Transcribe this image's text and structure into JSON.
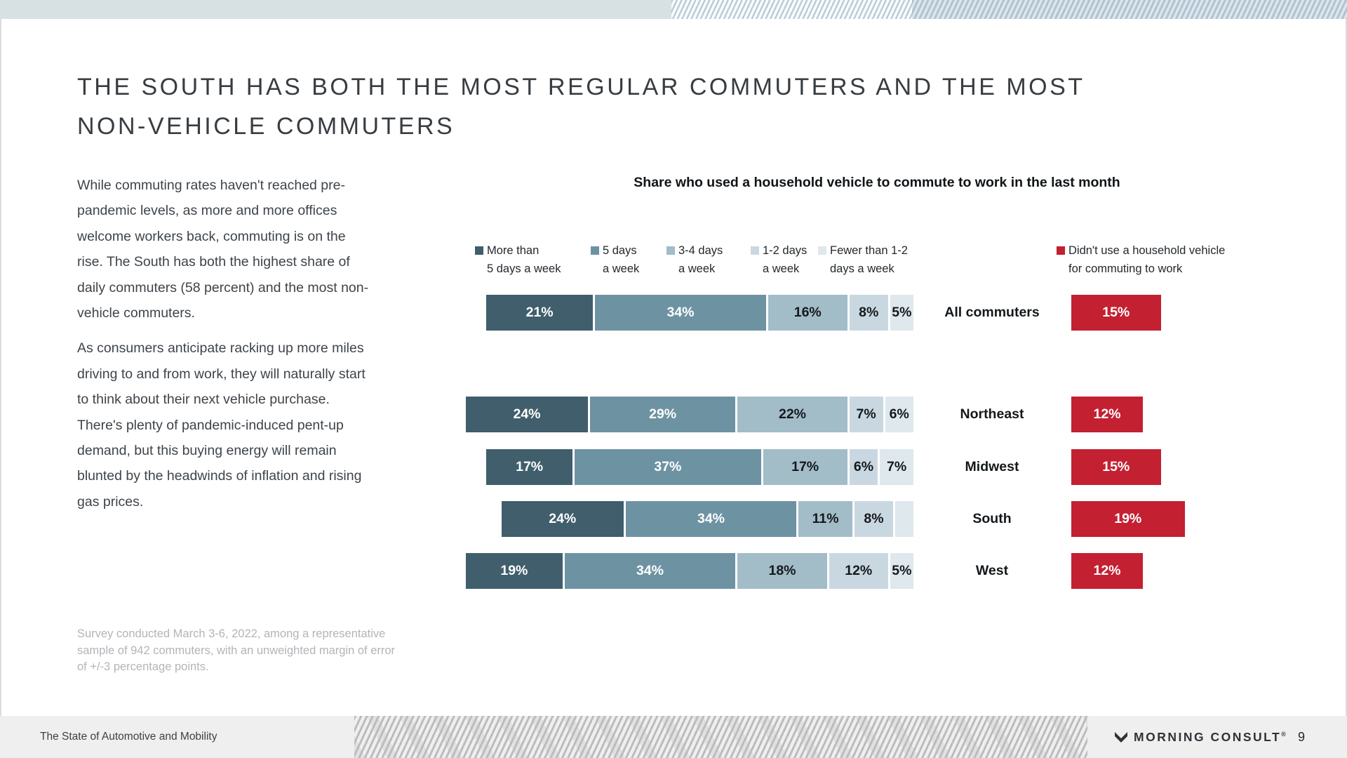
{
  "slide": {
    "title_line1": "THE SOUTH HAS BOTH THE MOST REGULAR COMMUTERS AND THE MOST",
    "title_line2": "NON-VEHICLE COMMUTERS",
    "body_para1": "While commuting rates haven't reached pre-pandemic levels, as more and more offices welcome workers back, commuting is on the rise. The South has both the highest share of daily commuters (58 percent) and the most non-vehicle commuters.",
    "body_para2": "As consumers anticipate racking up more miles driving to and from work, they will naturally start to think about their next vehicle purchase. There's plenty of pandemic-induced pent-up demand, but this buying energy will remain blunted by the headwinds of inflation and rising gas prices.",
    "survey_note": "Survey conducted March 3-6, 2022, among a representative sample of 942 commuters, with an unweighted margin of error of +/-3 percentage points."
  },
  "chart": {
    "title": "Share who used a household vehicle to commute to work in the last month",
    "legend": [
      {
        "line1": "More than",
        "line2": "5 days a week",
        "color": "#405e6c"
      },
      {
        "line1": "5 days",
        "line2": "a week",
        "color": "#6d93a3"
      },
      {
        "line1": "3-4 days",
        "line2": "a week",
        "color": "#a2bcc8"
      },
      {
        "line1": "1-2 days",
        "line2": "a week",
        "color": "#c9d8e0"
      },
      {
        "line1": "Fewer than 1-2",
        "line2": "days a week",
        "color": "#dfe8ec"
      },
      {
        "line1": "Didn't use a household vehicle",
        "line2": "for commuting to work",
        "color": "#c32032"
      }
    ],
    "rows": [
      {
        "label": "All commuters",
        "segments": [
          {
            "text": "21%",
            "value": 21
          },
          {
            "text": "34%",
            "value": 34
          },
          {
            "text": "16%",
            "value": 16
          },
          {
            "text": "8%",
            "value": 8
          },
          {
            "text": "5%",
            "value": 5
          }
        ],
        "no_vehicle": {
          "text": "15%",
          "value": 15
        }
      },
      {
        "label": "Northeast",
        "segments": [
          {
            "text": "24%",
            "value": 24
          },
          {
            "text": "29%",
            "value": 29
          },
          {
            "text": "22%",
            "value": 22
          },
          {
            "text": "7%",
            "value": 7
          },
          {
            "text": "6%",
            "value": 6
          }
        ],
        "no_vehicle": {
          "text": "12%",
          "value": 12
        }
      },
      {
        "label": "Midwest",
        "segments": [
          {
            "text": "17%",
            "value": 17
          },
          {
            "text": "37%",
            "value": 37
          },
          {
            "text": "17%",
            "value": 17
          },
          {
            "text": "6%",
            "value": 6
          },
          {
            "text": "7%",
            "value": 7
          }
        ],
        "no_vehicle": {
          "text": "15%",
          "value": 15
        }
      },
      {
        "label": "South",
        "segments": [
          {
            "text": "24%",
            "value": 24
          },
          {
            "text": "34%",
            "value": 34
          },
          {
            "text": "11%",
            "value": 11
          },
          {
            "text": "8%",
            "value": 8
          },
          {
            "text": "",
            "value": 4
          }
        ],
        "no_vehicle": {
          "text": "19%",
          "value": 19
        }
      },
      {
        "label": "West",
        "segments": [
          {
            "text": "19%",
            "value": 19
          },
          {
            "text": "34%",
            "value": 34
          },
          {
            "text": "18%",
            "value": 18
          },
          {
            "text": "12%",
            "value": 12
          },
          {
            "text": "5%",
            "value": 5
          }
        ],
        "no_vehicle": {
          "text": "12%",
          "value": 12
        }
      }
    ]
  },
  "footer": {
    "left_text": "The State of Automotive and Mobility",
    "brand": "MORNING CONSULT",
    "trademark": "®",
    "page_number": "9"
  },
  "chart_data": {
    "type": "bar",
    "subtype": "stacked-horizontal",
    "title": "Share who used a household vehicle to commute to work in the last month",
    "categories": [
      "All commuters",
      "Northeast",
      "Midwest",
      "South",
      "West"
    ],
    "series": [
      {
        "name": "More than 5 days a week",
        "values": [
          21,
          24,
          17,
          24,
          19
        ]
      },
      {
        "name": "5 days a week",
        "values": [
          34,
          29,
          37,
          34,
          34
        ]
      },
      {
        "name": "3-4 days a week",
        "values": [
          16,
          22,
          17,
          11,
          18
        ]
      },
      {
        "name": "1-2 days a week",
        "values": [
          8,
          7,
          6,
          8,
          12
        ]
      },
      {
        "name": "Fewer than 1-2 days a week",
        "values": [
          5,
          6,
          7,
          4,
          5
        ]
      },
      {
        "name": "Didn't use a household vehicle for commuting to work",
        "values": [
          15,
          12,
          15,
          19,
          12
        ]
      }
    ],
    "unit": "%",
    "colors": [
      "#405e6c",
      "#6d93a3",
      "#a2bcc8",
      "#c9d8e0",
      "#dfe8ec",
      "#c32032"
    ],
    "data_labels": true,
    "legend_position": "top",
    "notes": "South 'Fewer than 1-2 days a week' segment carries no visible data label; value estimated at 4% from bar width."
  }
}
